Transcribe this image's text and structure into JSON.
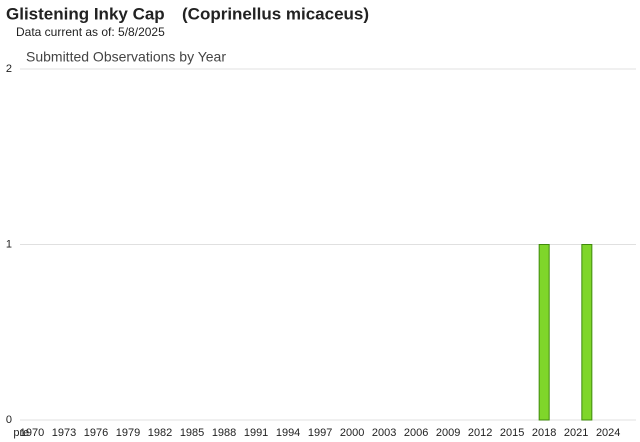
{
  "chart_data": {
    "type": "bar",
    "species_name": "Glistening Inky Cap",
    "scientific_name": "(Coprinellus micaceus)",
    "subtitle": "Data current as of: 5/8/2025",
    "title": "Submitted Observations by Year",
    "categories": [
      "pre",
      "1970",
      null,
      null,
      "1973",
      null,
      null,
      "1976",
      null,
      null,
      "1979",
      null,
      null,
      "1982",
      null,
      null,
      "1985",
      null,
      null,
      "1988",
      null,
      null,
      "1991",
      null,
      null,
      "1994",
      null,
      null,
      "1997",
      null,
      null,
      "2000",
      null,
      null,
      "2003",
      null,
      null,
      "2006",
      null,
      null,
      "2009",
      null,
      null,
      "2012",
      null,
      null,
      "2015",
      null,
      null,
      "2018",
      null,
      null,
      "2021",
      null,
      null,
      "2024",
      null
    ],
    "values": [
      0,
      0,
      0,
      0,
      0,
      0,
      0,
      0,
      0,
      0,
      0,
      0,
      0,
      0,
      0,
      0,
      0,
      0,
      0,
      0,
      0,
      0,
      0,
      0,
      0,
      0,
      0,
      0,
      0,
      0,
      0,
      0,
      0,
      0,
      0,
      0,
      0,
      0,
      0,
      0,
      0,
      0,
      0,
      0,
      0,
      0,
      0,
      0,
      0,
      1,
      0,
      0,
      0,
      1,
      0,
      0,
      0
    ],
    "color": "#7fd62a",
    "ylim": [
      0,
      2
    ],
    "yticks": [
      0,
      1,
      2
    ],
    "grid": true
  }
}
